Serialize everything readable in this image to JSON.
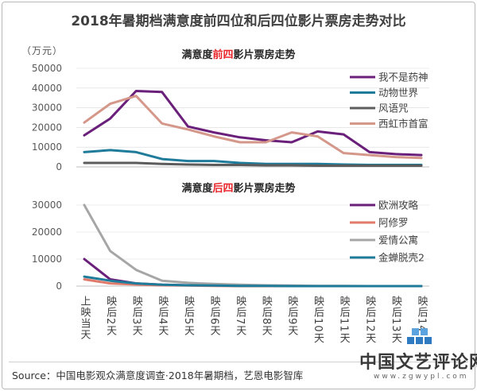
{
  "title": "2018年暑期档满意度前四位和后四位影片票房走势对比",
  "unit": "（万元）",
  "source": "Source：中国电影观众满意度调查·2018年暑期档，艺恩电影智库",
  "watermark": {
    "text": "中国文艺评论网",
    "url": "www.zgwypl.com"
  },
  "colors": {
    "title_highlight": "#e8262a",
    "axis_text": "#595959",
    "gridline": "#d9d9d9"
  },
  "chart_data": [
    {
      "type": "line",
      "title_prefix": "满意度",
      "title_highlight": "前四",
      "title_suffix": "影片票房走势",
      "ylim": [
        0,
        50000
      ],
      "yticks": [
        "0",
        "10000",
        "20000",
        "30000",
        "40000",
        "50000"
      ],
      "categories": [
        "上映当天",
        "映后2天",
        "映后3天",
        "映后4天",
        "映后5天",
        "映后6天",
        "映后7天",
        "映后8天",
        "映后9天",
        "映后10天",
        "映后11天",
        "映后12天",
        "映后13天",
        "映后14"
      ],
      "series": [
        {
          "name": "我不是药神",
          "color": "#6a1f7a",
          "values": [
            16000,
            24500,
            38500,
            38000,
            20500,
            17500,
            15000,
            13500,
            12500,
            18000,
            16500,
            7500,
            6500,
            6000
          ]
        },
        {
          "name": "动物世界",
          "color": "#1f7b9a",
          "values": [
            7500,
            8500,
            7500,
            4000,
            3000,
            3000,
            2000,
            1500,
            1500,
            1500,
            1200,
            1000,
            1000,
            1000
          ]
        },
        {
          "name": "风语咒",
          "color": "#5c5c5c",
          "values": [
            2000,
            2000,
            2000,
            1500,
            1200,
            1000,
            1000,
            800,
            800,
            600,
            600,
            600,
            600,
            600
          ]
        },
        {
          "name": "西虹市首富",
          "color": "#d4978a",
          "values": [
            22500,
            32000,
            36000,
            22000,
            19000,
            15500,
            12500,
            12500,
            17500,
            15500,
            7000,
            6000,
            5000,
            4500
          ]
        }
      ]
    },
    {
      "type": "line",
      "title_prefix": "满意度",
      "title_highlight": "后四",
      "title_suffix": "影片票房走势",
      "ylim": [
        0,
        30000
      ],
      "yticks": [
        "0",
        "10000",
        "20000",
        "30000"
      ],
      "categories": [
        "上映当天",
        "映后2天",
        "映后3天",
        "映后4天",
        "映后5天",
        "映后6天",
        "映后7天",
        "映后8天",
        "映后9天",
        "映后10天",
        "映后11天",
        "映后12天",
        "映后13天",
        "映后14"
      ],
      "series": [
        {
          "name": "欧洲攻略",
          "color": "#6a1f7a",
          "values": [
            10000,
            2500,
            1000,
            500,
            300,
            200,
            100,
            0,
            0,
            0,
            0,
            0,
            0,
            0
          ]
        },
        {
          "name": "阿修罗",
          "color": "#e07a6b",
          "values": [
            2500,
            1000,
            600,
            300,
            200,
            100,
            0,
            0,
            0,
            0,
            0,
            0,
            0,
            0
          ]
        },
        {
          "name": "爱情公寓",
          "color": "#a6a6a6",
          "values": [
            30000,
            13000,
            6000,
            2000,
            1200,
            800,
            500,
            300,
            200,
            100,
            100,
            0,
            0,
            0
          ]
        },
        {
          "name": "金蝉脱壳2",
          "color": "#1f7b9a",
          "values": [
            3500,
            2000,
            1000,
            500,
            300,
            200,
            100,
            100,
            0,
            0,
            0,
            0,
            0,
            0
          ]
        }
      ]
    }
  ]
}
